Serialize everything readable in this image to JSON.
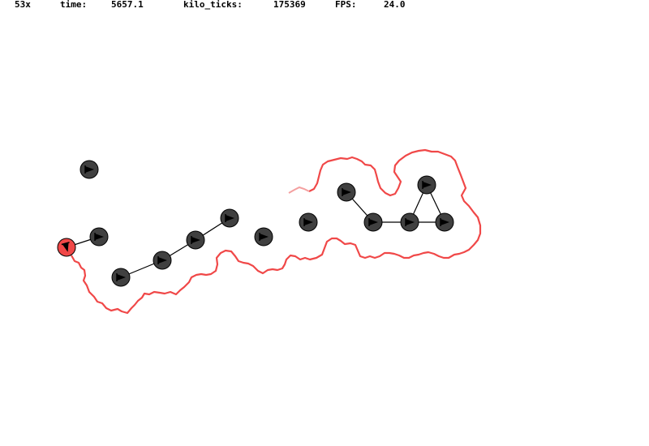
{
  "hud": {
    "speed": "53x",
    "time_label": "time:",
    "time_value": "5657.1",
    "ticks_label": "kilo_ticks:",
    "ticks_value": "175369",
    "fps_label": "FPS:",
    "fps_value": "24.0"
  },
  "colors": {
    "background": "#ffffff",
    "robot": "#404040",
    "robot_outline": "#000000",
    "robot_selected": "#f04848",
    "trail": "#f04848",
    "link": "#000000"
  },
  "robots": [
    {
      "id": "r0",
      "selected": true
    },
    {
      "id": "r1"
    },
    {
      "id": "r2"
    },
    {
      "id": "r3"
    },
    {
      "id": "r4"
    },
    {
      "id": "r5"
    },
    {
      "id": "r6"
    },
    {
      "id": "r7"
    },
    {
      "id": "r8"
    },
    {
      "id": "r9"
    },
    {
      "id": "r10"
    },
    {
      "id": "r11"
    },
    {
      "id": "r12"
    },
    {
      "id": "r13"
    }
  ],
  "links": [
    [
      "r0",
      "r1"
    ],
    [
      "r3",
      "r4"
    ],
    [
      "r4",
      "r5"
    ],
    [
      "r5",
      "r6"
    ],
    [
      "r9",
      "r10"
    ],
    [
      "r10",
      "r11"
    ],
    [
      "r11",
      "r12"
    ],
    [
      "r11",
      "r13"
    ],
    [
      "r12",
      "r13"
    ]
  ]
}
